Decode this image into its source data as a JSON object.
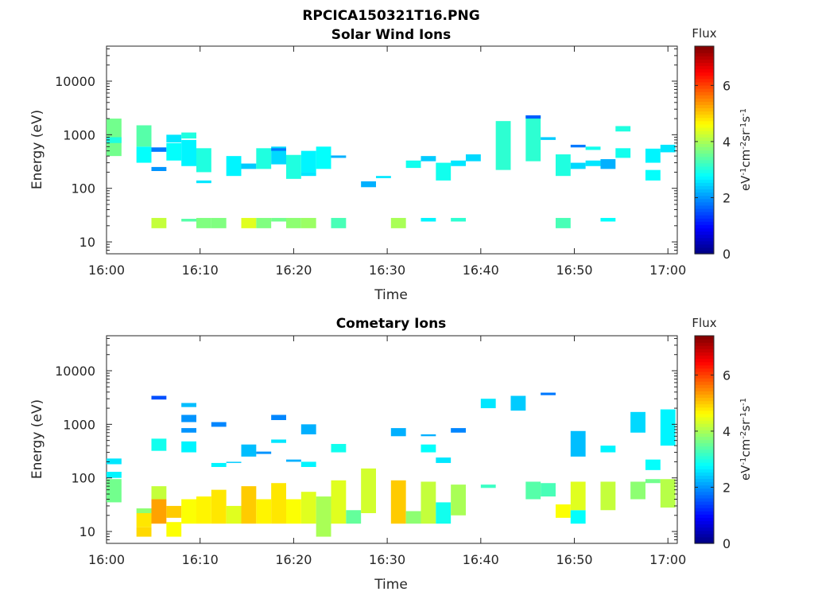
{
  "figure": {
    "file_title": "RPCICA150321T16.PNG"
  },
  "colorbar": {
    "title": "Flux",
    "unit_label": "eV-1cm-2sr-1s-1",
    "ticks": [
      0,
      2,
      4,
      6
    ],
    "range": [
      0,
      7.4
    ],
    "colormap": "jet"
  },
  "chart_data": [
    {
      "type": "heatmap",
      "title": "Solar Wind Ions",
      "xlabel": "Time",
      "ylabel": "Energy (eV)",
      "x_unit": "minutes after 16:00",
      "xlim": [
        0,
        61
      ],
      "xticks": [
        0,
        10,
        20,
        30,
        40,
        50,
        60
      ],
      "xtick_labels": [
        "16:00",
        "16:10",
        "16:20",
        "16:30",
        "16:40",
        "16:50",
        "17:00"
      ],
      "y_scale": "log",
      "ylim": [
        6,
        45000
      ],
      "yticks": [
        10,
        100,
        1000,
        10000
      ],
      "ytick_labels": [
        "10",
        "100",
        "1000",
        "10000"
      ],
      "cells": [
        [
          0,
          1.6,
          400,
          2000,
          3.6
        ],
        [
          0,
          1.6,
          700,
          900,
          3.0
        ],
        [
          3.2,
          4.8,
          300,
          600,
          2.8
        ],
        [
          3.2,
          4.8,
          600,
          1500,
          3.4
        ],
        [
          4.8,
          6.4,
          480,
          580,
          1.8
        ],
        [
          4.8,
          6.4,
          210,
          250,
          2.0
        ],
        [
          6.4,
          8.0,
          330,
          700,
          2.8
        ],
        [
          6.4,
          8.0,
          720,
          1000,
          2.6
        ],
        [
          8.0,
          9.6,
          260,
          800,
          2.7
        ],
        [
          8.0,
          9.6,
          850,
          1100,
          3.0
        ],
        [
          9.6,
          11.2,
          200,
          560,
          3.0
        ],
        [
          9.6,
          11.2,
          125,
          140,
          2.6
        ],
        [
          12.8,
          14.4,
          170,
          400,
          2.7
        ],
        [
          14.4,
          16.0,
          230,
          290,
          2.4
        ],
        [
          16.0,
          17.6,
          230,
          560,
          3.0
        ],
        [
          17.6,
          19.2,
          280,
          600,
          2.5
        ],
        [
          17.6,
          19.2,
          500,
          560,
          1.8
        ],
        [
          19.2,
          20.8,
          150,
          420,
          3.0
        ],
        [
          20.8,
          22.4,
          170,
          200,
          2.6
        ],
        [
          20.8,
          22.4,
          200,
          500,
          2.7
        ],
        [
          22.4,
          24.0,
          230,
          600,
          2.8
        ],
        [
          24.0,
          25.6,
          370,
          410,
          2.2
        ],
        [
          27.2,
          28.8,
          105,
          135,
          2.2
        ],
        [
          28.8,
          30.4,
          155,
          170,
          2.6
        ],
        [
          32.0,
          33.6,
          240,
          330,
          2.9
        ],
        [
          33.6,
          35.2,
          320,
          400,
          2.4
        ],
        [
          35.2,
          36.8,
          140,
          300,
          2.9
        ],
        [
          36.8,
          38.4,
          260,
          330,
          2.6
        ],
        [
          38.4,
          40.0,
          320,
          430,
          2.5
        ],
        [
          41.6,
          43.2,
          220,
          1800,
          3.1
        ],
        [
          44.8,
          46.4,
          320,
          2300,
          3.1
        ],
        [
          44.8,
          46.4,
          2000,
          2300,
          1.6
        ],
        [
          46.4,
          48.0,
          800,
          900,
          2.4
        ],
        [
          48.0,
          49.6,
          170,
          430,
          3.0
        ],
        [
          49.6,
          51.2,
          580,
          650,
          1.8
        ],
        [
          49.6,
          51.2,
          230,
          300,
          2.5
        ],
        [
          51.2,
          52.8,
          260,
          330,
          2.6
        ],
        [
          51.2,
          52.8,
          520,
          600,
          2.9
        ],
        [
          52.8,
          54.4,
          230,
          350,
          2.2
        ],
        [
          54.4,
          56.0,
          370,
          560,
          2.9
        ],
        [
          54.4,
          56.0,
          1150,
          1450,
          3.0
        ],
        [
          57.6,
          59.2,
          300,
          550,
          2.7
        ],
        [
          57.6,
          59.2,
          140,
          220,
          2.8
        ],
        [
          59.2,
          60.8,
          470,
          650,
          2.6
        ],
        [
          4.8,
          6.4,
          18,
          28,
          4.2
        ],
        [
          8.0,
          9.6,
          24,
          27,
          3.4
        ],
        [
          9.6,
          11.2,
          18,
          28,
          3.7
        ],
        [
          11.2,
          12.8,
          18,
          28,
          3.7
        ],
        [
          14.4,
          16.0,
          18,
          28,
          4.4
        ],
        [
          16.0,
          17.6,
          18,
          28,
          3.7
        ],
        [
          17.6,
          19.2,
          24,
          28,
          3.6
        ],
        [
          19.2,
          20.8,
          18,
          28,
          3.8
        ],
        [
          20.8,
          22.4,
          18,
          28,
          3.9
        ],
        [
          24.0,
          25.6,
          18,
          28,
          3.3
        ],
        [
          30.4,
          32.0,
          18,
          28,
          4.0
        ],
        [
          33.6,
          35.2,
          24,
          28,
          2.7
        ],
        [
          36.8,
          38.4,
          24,
          28,
          3.1
        ],
        [
          48.0,
          49.6,
          18,
          28,
          3.3
        ],
        [
          52.8,
          54.4,
          24,
          28,
          2.8
        ]
      ]
    },
    {
      "type": "heatmap",
      "title": "Cometary Ions",
      "xlabel": "Time",
      "ylabel": "Energy (eV)",
      "x_unit": "minutes after 16:00",
      "xlim": [
        0,
        61
      ],
      "xticks": [
        0,
        10,
        20,
        30,
        40,
        50,
        60
      ],
      "xtick_labels": [
        "16:00",
        "16:10",
        "16:20",
        "16:30",
        "16:40",
        "16:50",
        "17:00"
      ],
      "y_scale": "log",
      "ylim": [
        6,
        45000
      ],
      "yticks": [
        10,
        100,
        1000,
        10000
      ],
      "ytick_labels": [
        "10",
        "100",
        "1000",
        "10000"
      ],
      "cells": [
        [
          0,
          1.6,
          180,
          230,
          2.6
        ],
        [
          0,
          1.6,
          100,
          130,
          2.7
        ],
        [
          0,
          1.6,
          35,
          95,
          3.6
        ],
        [
          3.2,
          4.8,
          12,
          22,
          4.8
        ],
        [
          3.2,
          4.8,
          8,
          12,
          4.9
        ],
        [
          3.2,
          4.8,
          22,
          27,
          3.8
        ],
        [
          4.8,
          6.4,
          14,
          40,
          5.3
        ],
        [
          4.8,
          6.4,
          40,
          70,
          4.2
        ],
        [
          4.8,
          6.4,
          320,
          540,
          2.9
        ],
        [
          4.8,
          6.4,
          2900,
          3400,
          1.5
        ],
        [
          6.4,
          8.0,
          8,
          15,
          4.6
        ],
        [
          6.4,
          8.0,
          18,
          30,
          5.0
        ],
        [
          8.0,
          9.6,
          14,
          40,
          4.6
        ],
        [
          8.0,
          9.6,
          300,
          480,
          2.7
        ],
        [
          8.0,
          9.6,
          700,
          850,
          2.0
        ],
        [
          8.0,
          9.6,
          1100,
          1500,
          2.0
        ],
        [
          8.0,
          9.6,
          2100,
          2500,
          2.3
        ],
        [
          9.6,
          11.2,
          14,
          45,
          4.7
        ],
        [
          11.2,
          12.8,
          14,
          60,
          4.8
        ],
        [
          11.2,
          12.8,
          160,
          190,
          2.7
        ],
        [
          11.2,
          12.8,
          900,
          1100,
          1.9
        ],
        [
          12.8,
          14.4,
          14,
          30,
          4.4
        ],
        [
          12.8,
          14.4,
          190,
          200,
          2.4
        ],
        [
          14.4,
          16.0,
          14,
          70,
          5.0
        ],
        [
          14.4,
          16.0,
          250,
          420,
          2.3
        ],
        [
          16.0,
          17.6,
          14,
          40,
          4.7
        ],
        [
          16.0,
          17.6,
          280,
          310,
          2.0
        ],
        [
          17.6,
          19.2,
          14,
          80,
          4.8
        ],
        [
          17.6,
          19.2,
          450,
          520,
          2.6
        ],
        [
          17.6,
          19.2,
          1200,
          1500,
          1.9
        ],
        [
          19.2,
          20.8,
          14,
          40,
          4.6
        ],
        [
          19.2,
          20.8,
          200,
          220,
          2.2
        ],
        [
          20.8,
          22.4,
          14,
          55,
          4.4
        ],
        [
          20.8,
          22.4,
          160,
          200,
          2.7
        ],
        [
          20.8,
          22.4,
          650,
          1000,
          2.2
        ],
        [
          22.4,
          24.0,
          8,
          45,
          4.0
        ],
        [
          24.0,
          25.6,
          14,
          90,
          4.4
        ],
        [
          24.0,
          25.6,
          300,
          430,
          2.9
        ],
        [
          25.6,
          27.2,
          14,
          25,
          3.5
        ],
        [
          27.2,
          28.8,
          22,
          150,
          4.3
        ],
        [
          30.4,
          32.0,
          14,
          90,
          5.0
        ],
        [
          30.4,
          32.0,
          600,
          850,
          2.2
        ],
        [
          32.0,
          33.6,
          14,
          24,
          3.8
        ],
        [
          33.6,
          35.2,
          14,
          85,
          4.2
        ],
        [
          33.6,
          35.2,
          300,
          420,
          2.8
        ],
        [
          33.6,
          35.2,
          600,
          650,
          2.2
        ],
        [
          35.2,
          36.8,
          14,
          35,
          2.9
        ],
        [
          35.2,
          36.8,
          190,
          240,
          2.6
        ],
        [
          36.8,
          38.4,
          20,
          75,
          4.0
        ],
        [
          36.8,
          38.4,
          700,
          850,
          1.9
        ],
        [
          40.0,
          41.6,
          65,
          75,
          3.2
        ],
        [
          40.0,
          41.6,
          2000,
          3000,
          2.6
        ],
        [
          43.2,
          44.8,
          1800,
          3400,
          2.4
        ],
        [
          44.8,
          46.4,
          40,
          85,
          3.4
        ],
        [
          46.4,
          48.0,
          45,
          80,
          3.3
        ],
        [
          46.4,
          48.0,
          3500,
          3900,
          1.8
        ],
        [
          48.0,
          49.6,
          18,
          32,
          4.6
        ],
        [
          49.6,
          51.2,
          14,
          25,
          2.8
        ],
        [
          49.6,
          51.2,
          25,
          85,
          4.4
        ],
        [
          49.6,
          51.2,
          250,
          750,
          2.3
        ],
        [
          52.8,
          54.4,
          25,
          85,
          4.2
        ],
        [
          52.8,
          54.4,
          300,
          400,
          2.7
        ],
        [
          56.0,
          57.6,
          40,
          85,
          3.8
        ],
        [
          56.0,
          57.6,
          700,
          1700,
          2.5
        ],
        [
          57.6,
          59.2,
          140,
          220,
          2.8
        ],
        [
          57.6,
          59.2,
          80,
          95,
          3.6
        ],
        [
          59.2,
          60.8,
          28,
          95,
          4.1
        ],
        [
          59.2,
          60.8,
          400,
          1900,
          2.7
        ]
      ]
    }
  ]
}
